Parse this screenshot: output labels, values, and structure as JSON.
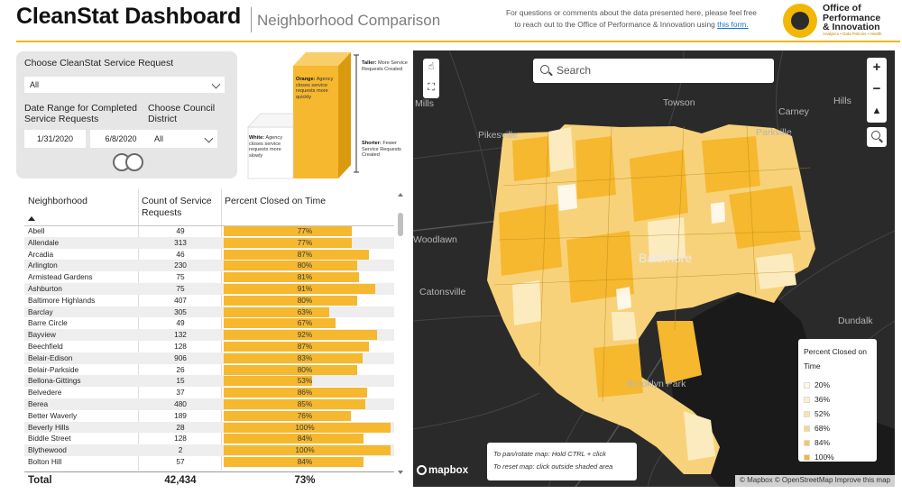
{
  "header": {
    "title": "CleanStat Dashboard",
    "subtitle": "Neighborhood Comparison",
    "contact_line1": "For questions or comments about the data presented here, please feel free",
    "contact_line2": "to reach out to the Office of Performance & Innovation using",
    "contact_link": "this form.",
    "logo_line1": "Office of",
    "logo_line2": "Performance",
    "logo_line3": "& Innovation",
    "logo_tagline": "Analytics • Data Policies • Health",
    "accent_color": "#f2b705"
  },
  "filters": {
    "service_request_label": "Choose CleanStat Service Request",
    "service_request_value": "All",
    "date_range_label": "Date Range for Completed Service Requests",
    "start_date": "1/31/2020",
    "end_date": "6/8/2020",
    "council_label": "Choose Council District",
    "council_value": "All"
  },
  "cube_legend": {
    "orange_title": "Orange:",
    "orange_text": "Agency closes service requests more quickly",
    "white_title": "White:",
    "white_text": "Agency closes service requests more slowly",
    "taller_title": "Taller:",
    "taller_text": "More Service Requests Created",
    "shorter_title": "Shorter:",
    "shorter_text": "Fewer Service Requests Created"
  },
  "table": {
    "columns": [
      "Neighborhood",
      "Count of Service Requests",
      "Percent Closed on Time"
    ],
    "bar_color": "#f5b82e",
    "rows": [
      {
        "name": "Abell",
        "count": "49",
        "pct": "77%",
        "pct_value": 77
      },
      {
        "name": "Allendale",
        "count": "313",
        "pct": "77%",
        "pct_value": 77
      },
      {
        "name": "Arcadia",
        "count": "46",
        "pct": "87%",
        "pct_value": 87
      },
      {
        "name": "Arlington",
        "count": "230",
        "pct": "80%",
        "pct_value": 80
      },
      {
        "name": "Armistead Gardens",
        "count": "75",
        "pct": "81%",
        "pct_value": 81
      },
      {
        "name": "Ashburton",
        "count": "75",
        "pct": "91%",
        "pct_value": 91
      },
      {
        "name": "Baltimore Highlands",
        "count": "407",
        "pct": "80%",
        "pct_value": 80
      },
      {
        "name": "Barclay",
        "count": "305",
        "pct": "63%",
        "pct_value": 63
      },
      {
        "name": "Barre Circle",
        "count": "49",
        "pct": "67%",
        "pct_value": 67
      },
      {
        "name": "Bayview",
        "count": "132",
        "pct": "92%",
        "pct_value": 92
      },
      {
        "name": "Beechfield",
        "count": "128",
        "pct": "87%",
        "pct_value": 87
      },
      {
        "name": "Belair-Edison",
        "count": "906",
        "pct": "83%",
        "pct_value": 83
      },
      {
        "name": "Belair-Parkside",
        "count": "26",
        "pct": "80%",
        "pct_value": 80
      },
      {
        "name": "Bellona-Gittings",
        "count": "15",
        "pct": "53%",
        "pct_value": 53
      },
      {
        "name": "Belvedere",
        "count": "37",
        "pct": "86%",
        "pct_value": 86
      },
      {
        "name": "Berea",
        "count": "480",
        "pct": "85%",
        "pct_value": 85
      },
      {
        "name": "Better Waverly",
        "count": "189",
        "pct": "76%",
        "pct_value": 76
      },
      {
        "name": "Beverly Hills",
        "count": "28",
        "pct": "100%",
        "pct_value": 100
      },
      {
        "name": "Biddle Street",
        "count": "128",
        "pct": "84%",
        "pct_value": 84
      },
      {
        "name": "Blythewood",
        "count": "2",
        "pct": "100%",
        "pct_value": 100
      },
      {
        "name": "Bolton Hill",
        "count": "57",
        "pct": "84%",
        "pct_value": 84
      }
    ],
    "total_label": "Total",
    "total_count": "42,434",
    "total_pct": "73%"
  },
  "map": {
    "search_placeholder": "Search",
    "places": {
      "towson": "Towson",
      "carney": "Carney",
      "pikesville": "Pikesville",
      "parkville": "Parkville",
      "woodlawn": "Woodlawn",
      "catonsville": "Catonsville",
      "baltimore": "Baltimore",
      "dundalk": "Dundalk",
      "brooklyn_park": "Brooklyn Park",
      "mills": "Mills",
      "hills": "Hills"
    },
    "legend_title": "Percent Closed on Time",
    "legend_items": [
      {
        "label": "20%",
        "color": "#fff8e6"
      },
      {
        "label": "36%",
        "color": "#fdefc8"
      },
      {
        "label": "52%",
        "color": "#fbe4a8"
      },
      {
        "label": "68%",
        "color": "#f9d684"
      },
      {
        "label": "84%",
        "color": "#f7c75a"
      },
      {
        "label": "100%",
        "color": "#f5b82e"
      }
    ],
    "hint_line1": "To pan/rotate map: Hold CTRL + click",
    "hint_line2": "To reset map: click outside shaded area",
    "mapbox_label": "mapbox",
    "attribution": "© Mapbox © OpenStreetMap  Improve this map"
  }
}
